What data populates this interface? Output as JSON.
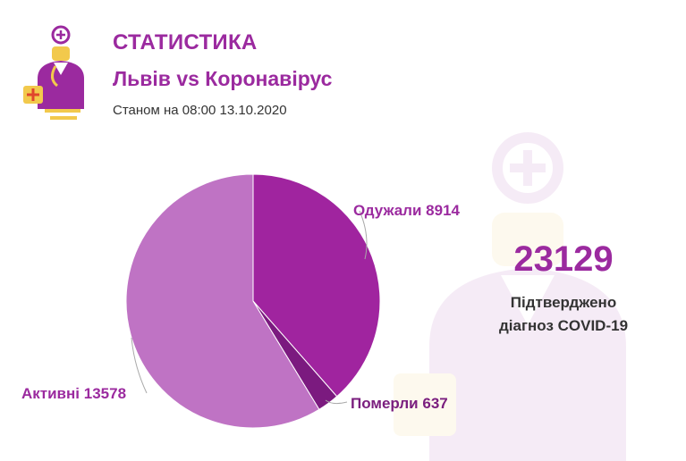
{
  "header": {
    "title": "СТАТИСТИКА",
    "subtitle": "Львів vs Коронавірус",
    "date": "Станом на 08:00 13.10.2020"
  },
  "icons": {
    "logo": "doctor-icon",
    "watermark": "doctor-icon"
  },
  "summary": {
    "total": "23129",
    "caption_line1": "Підтверджено",
    "caption_line2": "діагноз COVID-19"
  },
  "colors": {
    "brand": "#9b2a9f",
    "recovered": "#a0249f",
    "deaths": "#7b1a7f",
    "active": "#bf73c4",
    "text": "#333333"
  },
  "chart_data": {
    "type": "pie",
    "labels": [
      {
        "name": "Одужали",
        "value_text": "8914"
      },
      {
        "name": "Померли",
        "value_text": "637"
      },
      {
        "name": "Активні",
        "value_text": "13578"
      }
    ],
    "slices": [
      {
        "name": "Одужали",
        "value": 8914,
        "color": "#a0249f"
      },
      {
        "name": "Померли",
        "value": 637,
        "color": "#7b1a7f"
      },
      {
        "name": "Активні",
        "value": 13578,
        "color": "#bf73c4"
      }
    ]
  }
}
